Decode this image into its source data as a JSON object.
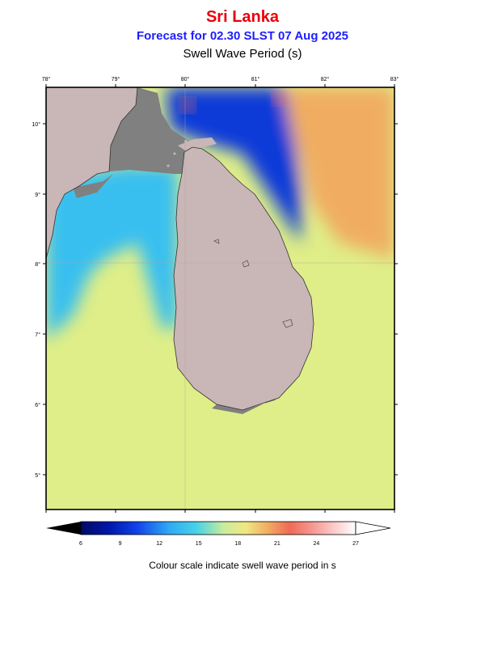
{
  "title": "Sri Lanka",
  "subtitle": "Forecast for  02.30 SLST 07 Aug 2025",
  "variable": "Swell Wave Period (s)",
  "lon_ticks": [
    "78°",
    "79°",
    "80°",
    "81°",
    "82°",
    "83°"
  ],
  "lat_ticks": [
    "10°",
    "9°",
    "8°",
    "7°",
    "6°",
    "5°"
  ],
  "colorbar": {
    "ticks": [
      "6",
      "9",
      "12",
      "15",
      "18",
      "21",
      "24",
      "27"
    ],
    "caption": "Colour scale indicate swell wave period in s"
  },
  "colors": {
    "land": "#c9b6b6",
    "shallow": "#808080",
    "deep_blue": "#0a3ad8",
    "light_blue": "#38bff0",
    "yellow_green": "#dfee88",
    "orange": "#f0ad62",
    "title_red": "#e8000b",
    "subtitle_blue": "#1e1eff"
  }
}
